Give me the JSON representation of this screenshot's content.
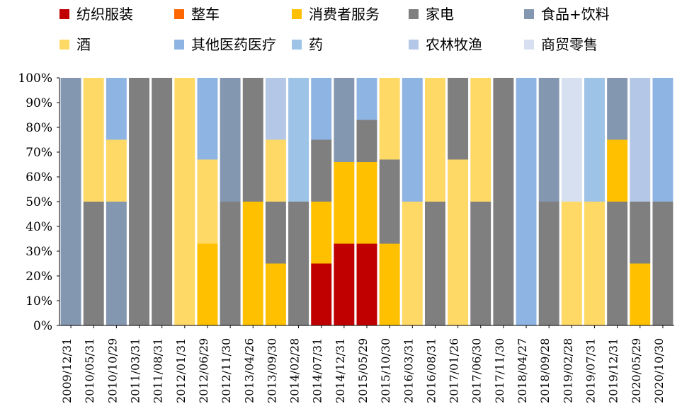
{
  "chart_data": {
    "type": "bar",
    "title": "",
    "xlabel": "",
    "ylabel": "",
    "ylim": [
      0,
      100
    ],
    "grid": false,
    "legend_position": "top",
    "legend": [
      {
        "name": "纺织服装",
        "color": "#C00000"
      },
      {
        "name": "整车",
        "color": "#FF6600"
      },
      {
        "name": "消费者服务",
        "color": "#FFC000"
      },
      {
        "name": "家电",
        "color": "#7F7F7F"
      },
      {
        "name": "食品+饮料",
        "color": "#8497B0"
      },
      {
        "name": "酒",
        "color": "#FFD966"
      },
      {
        "name": "其他医药医疗",
        "color": "#8EB4E3"
      },
      {
        "name": "药",
        "color": "#9DC3E6"
      },
      {
        "name": "农林牧渔",
        "color": "#B4C7E7"
      },
      {
        "name": "商贸零售",
        "color": "#D6E0F0"
      }
    ],
    "yticks": [
      "0%",
      "10%",
      "20%",
      "30%",
      "40%",
      "50%",
      "60%",
      "70%",
      "80%",
      "90%",
      "100%"
    ],
    "xticks": [
      "2009/12/31",
      "2010/05/31",
      "2010/10/29",
      "2011/03/31",
      "2011/08/31",
      "2012/01/31",
      "2012/06/29",
      "2012/11/30",
      "2013/04/26",
      "2013/09/30",
      "2014/02/28",
      "2014/07/31",
      "2014/12/31",
      "2015/05/29",
      "2015/10/30",
      "2016/03/31",
      "2016/08/31",
      "2017/01/26",
      "2017/06/30",
      "2017/11/30",
      "2018/04/27",
      "2018/09/28",
      "2019/02/28",
      "2019/07/31",
      "2019/12/31",
      "2020/05/29",
      "2020/10/30"
    ],
    "periods": [
      {
        "label": "2009/12/31",
        "segments": [
          [
            4,
            100
          ]
        ]
      },
      {
        "label": "2010/05/31",
        "segments": [
          [
            3,
            50
          ],
          [
            5,
            50
          ]
        ]
      },
      {
        "label": "2010/10/29",
        "segments": [
          [
            4,
            50
          ],
          [
            5,
            25
          ],
          [
            6,
            25
          ]
        ]
      },
      {
        "label": "2011/03/31",
        "segments": [
          [
            3,
            100
          ]
        ]
      },
      {
        "label": "2011/08/31",
        "segments": [
          [
            3,
            100
          ]
        ]
      },
      {
        "label": "2012/01/31",
        "segments": [
          [
            5,
            100
          ]
        ]
      },
      {
        "label": "2012/06/29",
        "segments": [
          [
            2,
            33
          ],
          [
            5,
            34
          ],
          [
            6,
            33
          ]
        ]
      },
      {
        "label": "2012/11/30",
        "segments": [
          [
            3,
            50
          ],
          [
            4,
            50
          ]
        ]
      },
      {
        "label": "2013/04/26",
        "segments": [
          [
            2,
            50
          ],
          [
            3,
            50
          ]
        ]
      },
      {
        "label": "2013/09/30",
        "segments": [
          [
            2,
            25
          ],
          [
            3,
            25
          ],
          [
            5,
            25
          ],
          [
            8,
            25
          ]
        ]
      },
      {
        "label": "2014/02/28",
        "segments": [
          [
            3,
            50
          ],
          [
            7,
            50
          ]
        ]
      },
      {
        "label": "2014/07/31",
        "segments": [
          [
            0,
            25
          ],
          [
            2,
            25
          ],
          [
            3,
            25
          ],
          [
            6,
            25
          ]
        ]
      },
      {
        "label": "2014/12/31",
        "segments": [
          [
            0,
            33
          ],
          [
            2,
            33
          ],
          [
            4,
            34
          ]
        ]
      },
      {
        "label": "2015/05/29",
        "segments": [
          [
            0,
            33
          ],
          [
            2,
            33
          ],
          [
            3,
            17
          ],
          [
            6,
            17
          ]
        ]
      },
      {
        "label": "2015/10/30",
        "segments": [
          [
            2,
            33
          ],
          [
            3,
            34
          ],
          [
            5,
            33
          ]
        ]
      },
      {
        "label": "2016/03/31",
        "segments": [
          [
            5,
            50
          ],
          [
            6,
            50
          ]
        ]
      },
      {
        "label": "2016/08/31",
        "segments": [
          [
            3,
            50
          ],
          [
            5,
            50
          ]
        ]
      },
      {
        "label": "2017/01/26",
        "segments": [
          [
            5,
            67
          ],
          [
            3,
            33
          ]
        ]
      },
      {
        "label": "2017/06/30",
        "segments": [
          [
            3,
            50
          ],
          [
            5,
            50
          ]
        ]
      },
      {
        "label": "2017/11/30",
        "segments": [
          [
            3,
            100
          ]
        ]
      },
      {
        "label": "2018/04/27",
        "segments": [
          [
            6,
            100
          ]
        ]
      },
      {
        "label": "2018/09/28",
        "segments": [
          [
            3,
            50
          ],
          [
            4,
            50
          ]
        ]
      },
      {
        "label": "2019/02/28",
        "segments": [
          [
            5,
            50
          ],
          [
            9,
            50
          ]
        ]
      },
      {
        "label": "2019/07/31",
        "segments": [
          [
            5,
            50
          ],
          [
            7,
            50
          ]
        ]
      },
      {
        "label": "2019/12/31",
        "segments": [
          [
            3,
            50
          ],
          [
            2,
            25
          ],
          [
            4,
            25
          ]
        ]
      },
      {
        "label": "2020/05/29",
        "segments": [
          [
            2,
            25
          ],
          [
            3,
            25
          ],
          [
            8,
            50
          ]
        ]
      },
      {
        "label": "2020/10/30",
        "segments": [
          [
            3,
            50
          ],
          [
            6,
            50
          ]
        ]
      }
    ]
  }
}
